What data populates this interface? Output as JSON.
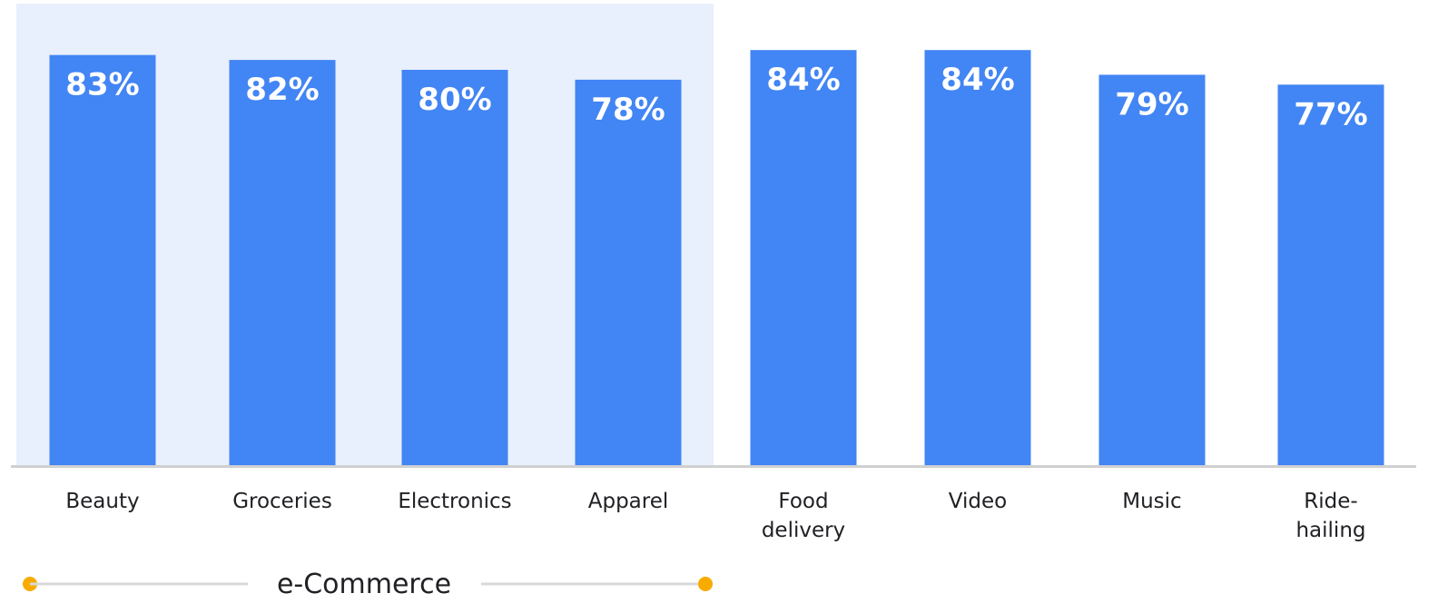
{
  "chart_data": {
    "type": "bar",
    "categories": [
      "Beauty",
      "Groceries",
      "Electronics",
      "Apparel",
      "Food delivery",
      "Video",
      "Music",
      "Ride-hailing"
    ],
    "category_lines": [
      [
        "Beauty"
      ],
      [
        "Groceries"
      ],
      [
        "Electronics"
      ],
      [
        "Apparel"
      ],
      [
        "Food",
        "delivery"
      ],
      [
        "Video"
      ],
      [
        "Music"
      ],
      [
        "Ride-",
        "hailing"
      ]
    ],
    "values": [
      83,
      82,
      80,
      78,
      84,
      84,
      79,
      77
    ],
    "value_labels": [
      "83%",
      "82%",
      "80%",
      "78%",
      "84%",
      "84%",
      "79%",
      "77%"
    ],
    "title": "",
    "xlabel": "",
    "ylabel": "",
    "ylim": [
      0,
      100
    ],
    "grid": false,
    "legend": "none",
    "group": {
      "label": "e-Commerce",
      "categories": [
        "Beauty",
        "Groceries",
        "Electronics",
        "Apparel"
      ]
    },
    "colors": {
      "bar": "#4285F4",
      "value_label": "#FFFFFF",
      "group_background": "#E8F0FD",
      "baseline": "#D0D0D0",
      "group_dot": "#F9AB00",
      "group_line": "#D9D9D9",
      "text": "#202124"
    }
  }
}
